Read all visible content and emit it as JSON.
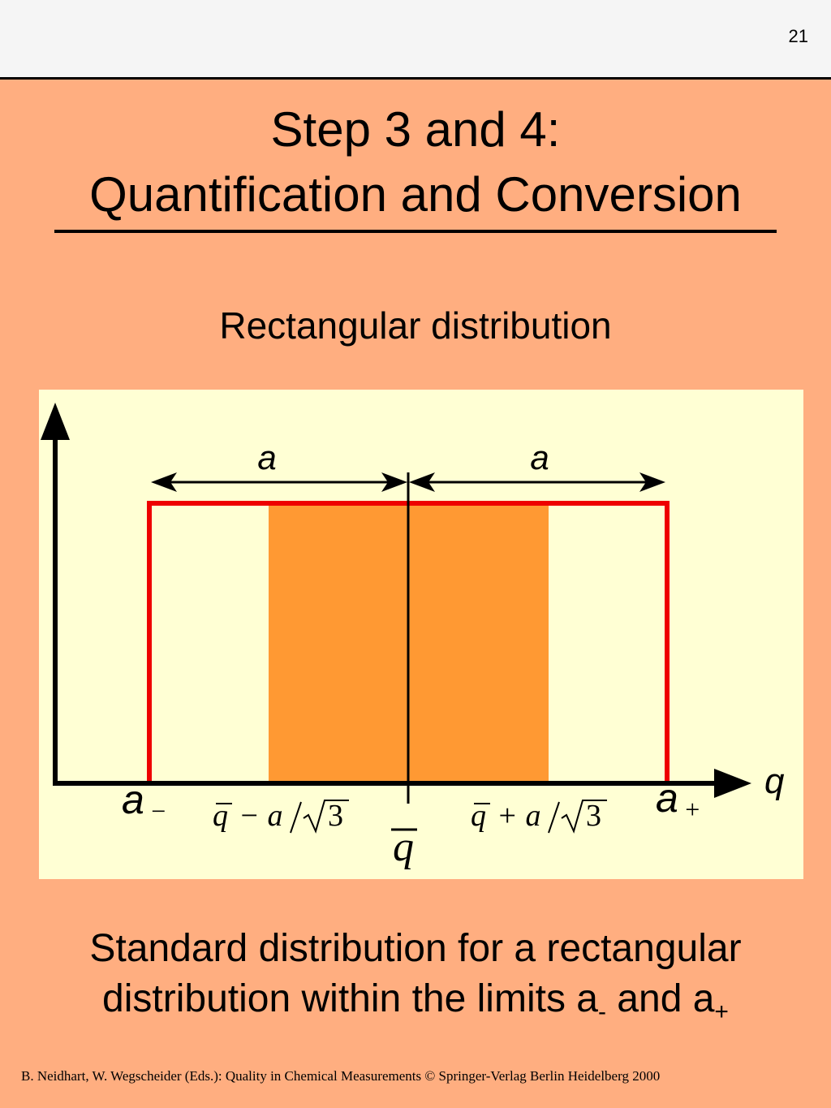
{
  "page_number": "21",
  "title_line1": "Step 3 and 4:",
  "title_line2": "Quantification and Conversion",
  "subtitle": "Rectangular distribution",
  "diagram": {
    "left_half_label": "a",
    "right_half_label": "a",
    "x_axis_label": "q",
    "lower_limit": {
      "symbol": "a",
      "sub": "−"
    },
    "upper_limit": {
      "symbol": "a",
      "sub": "+"
    },
    "minus_sd": {
      "q": "q",
      "op": "−",
      "a": "a",
      "n": "3"
    },
    "plus_sd": {
      "q": "q",
      "op": "+",
      "a": "a",
      "n": "3"
    },
    "mean": "q",
    "colors": {
      "rectangle": "#ee0000",
      "band": "#ff9933",
      "panel": "#ffffd4",
      "axes": "#000000"
    }
  },
  "caption": {
    "line1": "Standard distribution for a rectangular",
    "line2_prefix": "distribution within the limits a",
    "sub_minus": "-",
    "middle": " and a",
    "sub_plus": "+"
  },
  "footer": "B. Neidhart, W. Wegscheider (Eds.): Quality in Chemical Measurements © Springer-Verlag Berlin Heidelberg 2000"
}
